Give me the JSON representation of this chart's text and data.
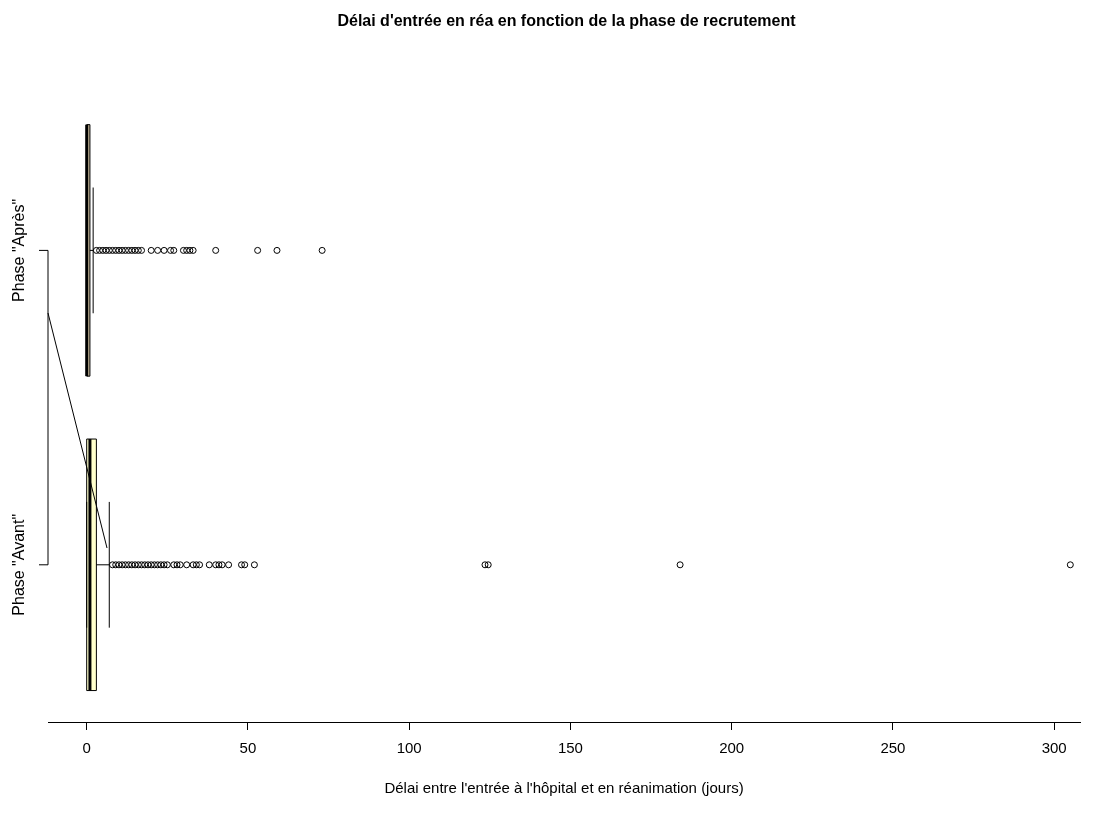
{
  "chart_data": {
    "type": "box",
    "title": "Délai d'entrée en réa en fonction de la phase de recrutement",
    "xlabel": "Délai entre l'entrée à l'hôpital et en réanimation (jours)",
    "orientation": "horizontal",
    "categories": [
      "Phase \"Après\"",
      "Phase \"Avant\""
    ],
    "colors": [
      "#c8b89a",
      "#ffffcc"
    ],
    "boxes": [
      {
        "low": 0,
        "q1": 0,
        "median": 0,
        "q3": 1,
        "high": 2,
        "outliers": [
          3,
          4,
          5,
          6,
          7,
          8,
          9,
          10,
          11,
          12,
          13,
          14,
          15,
          16,
          17,
          20,
          22,
          24,
          26,
          27,
          30,
          31,
          32,
          33,
          40,
          53,
          59,
          73
        ]
      },
      {
        "low": 0,
        "q1": 0,
        "median": 1,
        "q3": 3,
        "high": 7,
        "outliers": [
          8,
          9,
          10,
          11,
          12,
          13,
          14,
          15,
          16,
          17,
          18,
          19,
          20,
          21,
          22,
          23,
          24,
          25,
          27,
          28,
          29,
          31,
          33,
          34,
          35,
          38,
          40,
          41,
          42,
          44,
          48,
          49,
          52,
          123.5,
          124.5,
          184,
          305
        ]
      }
    ],
    "xlim": [
      -12,
      308
    ],
    "xticks": [
      0,
      50,
      100,
      150,
      200,
      250,
      300
    ],
    "marker": "circle"
  }
}
